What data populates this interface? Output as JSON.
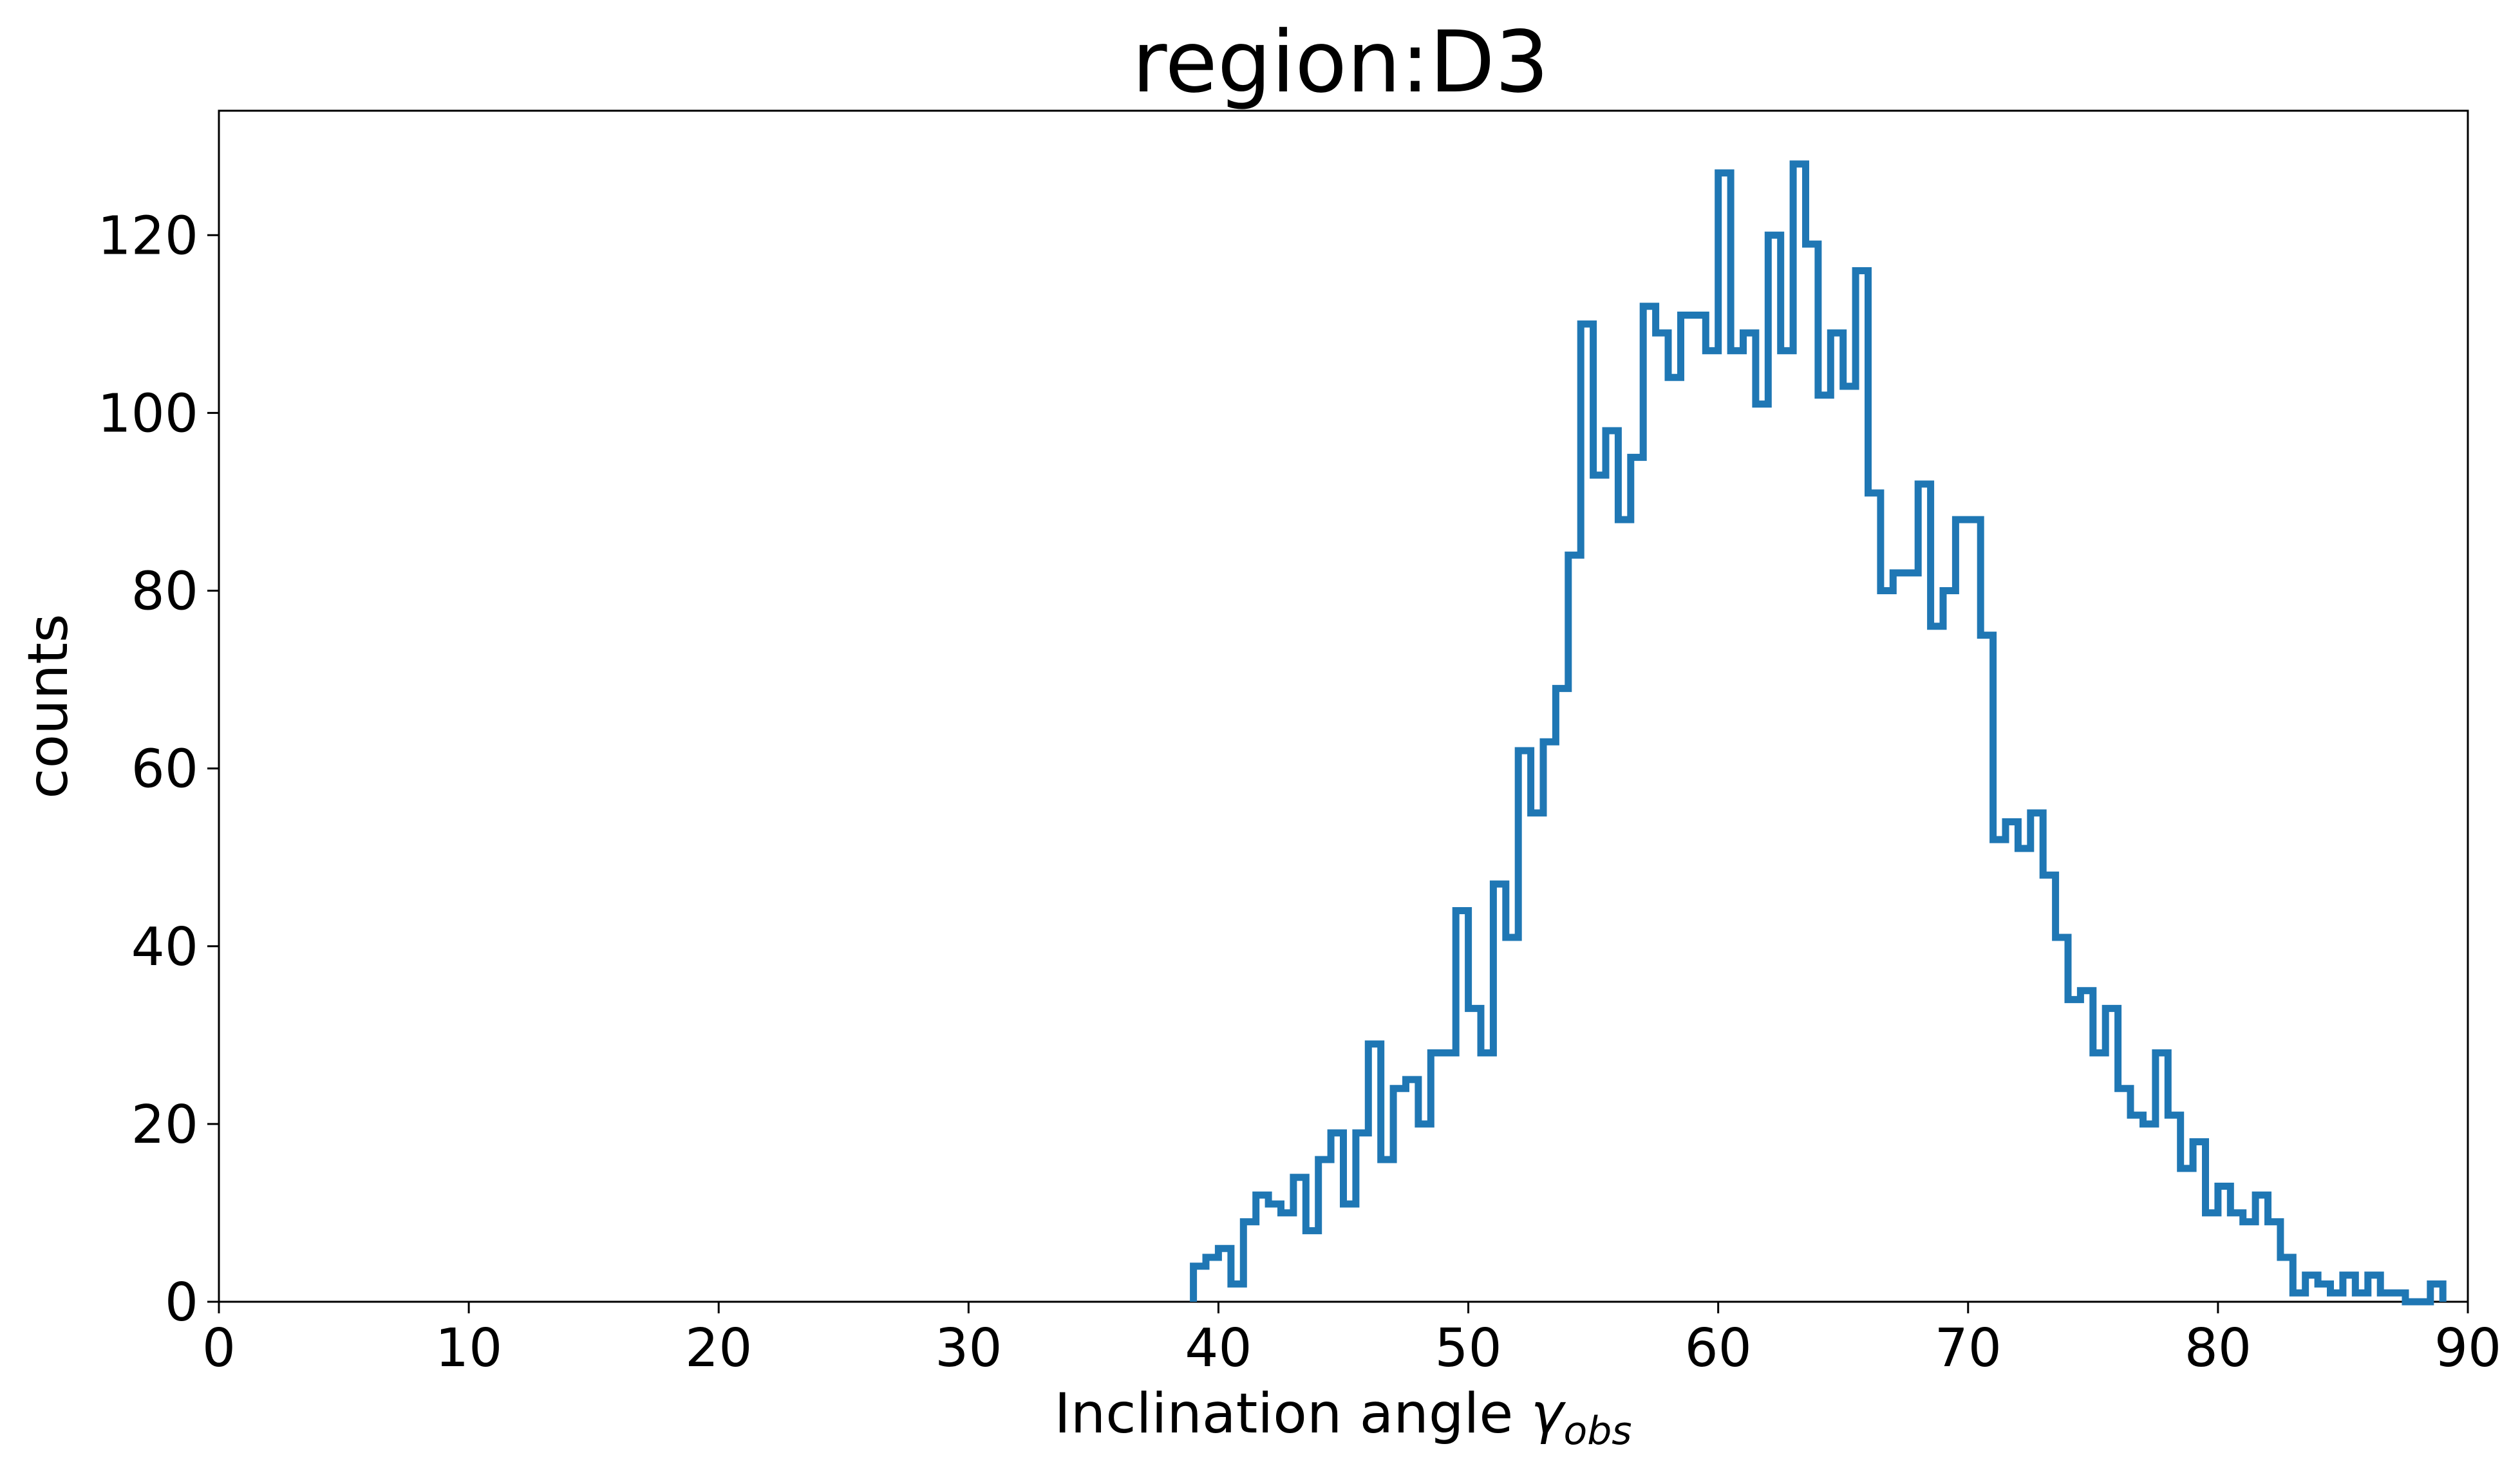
{
  "chart_data": {
    "type": "step-histogram",
    "title": "region:D3",
    "xlabel": {
      "main": "Inclination angle ",
      "symbol": "γ",
      "subscript": "obs"
    },
    "ylabel": "counts",
    "xlim": [
      0,
      90
    ],
    "ylim": [
      0,
      134
    ],
    "xticks": [
      0,
      10,
      20,
      30,
      40,
      50,
      60,
      70,
      80,
      90
    ],
    "yticks": [
      0,
      20,
      40,
      60,
      80,
      100,
      120
    ],
    "grid": false,
    "line_color": "#1f77b4",
    "bin_start": 39.0,
    "bin_width": 0.5,
    "counts": [
      4,
      5,
      6,
      2,
      9,
      12,
      11,
      10,
      14,
      8,
      16,
      19,
      11,
      19,
      29,
      16,
      24,
      25,
      20,
      28,
      28,
      44,
      33,
      28,
      47,
      41,
      62,
      55,
      63,
      69,
      84,
      110,
      93,
      98,
      88,
      95,
      112,
      109,
      104,
      111,
      111,
      107,
      127,
      107,
      109,
      101,
      120,
      107,
      128,
      119,
      102,
      109,
      103,
      116,
      91,
      80,
      82,
      82,
      92,
      76,
      80,
      88,
      88,
      75,
      52,
      54,
      51,
      55,
      48,
      41,
      34,
      35,
      28,
      33,
      24,
      21,
      20,
      28,
      21,
      15,
      18,
      10,
      13,
      10,
      9,
      12,
      9,
      5,
      1,
      3,
      2,
      1,
      3,
      1,
      3,
      1,
      1,
      0,
      0,
      2
    ]
  }
}
